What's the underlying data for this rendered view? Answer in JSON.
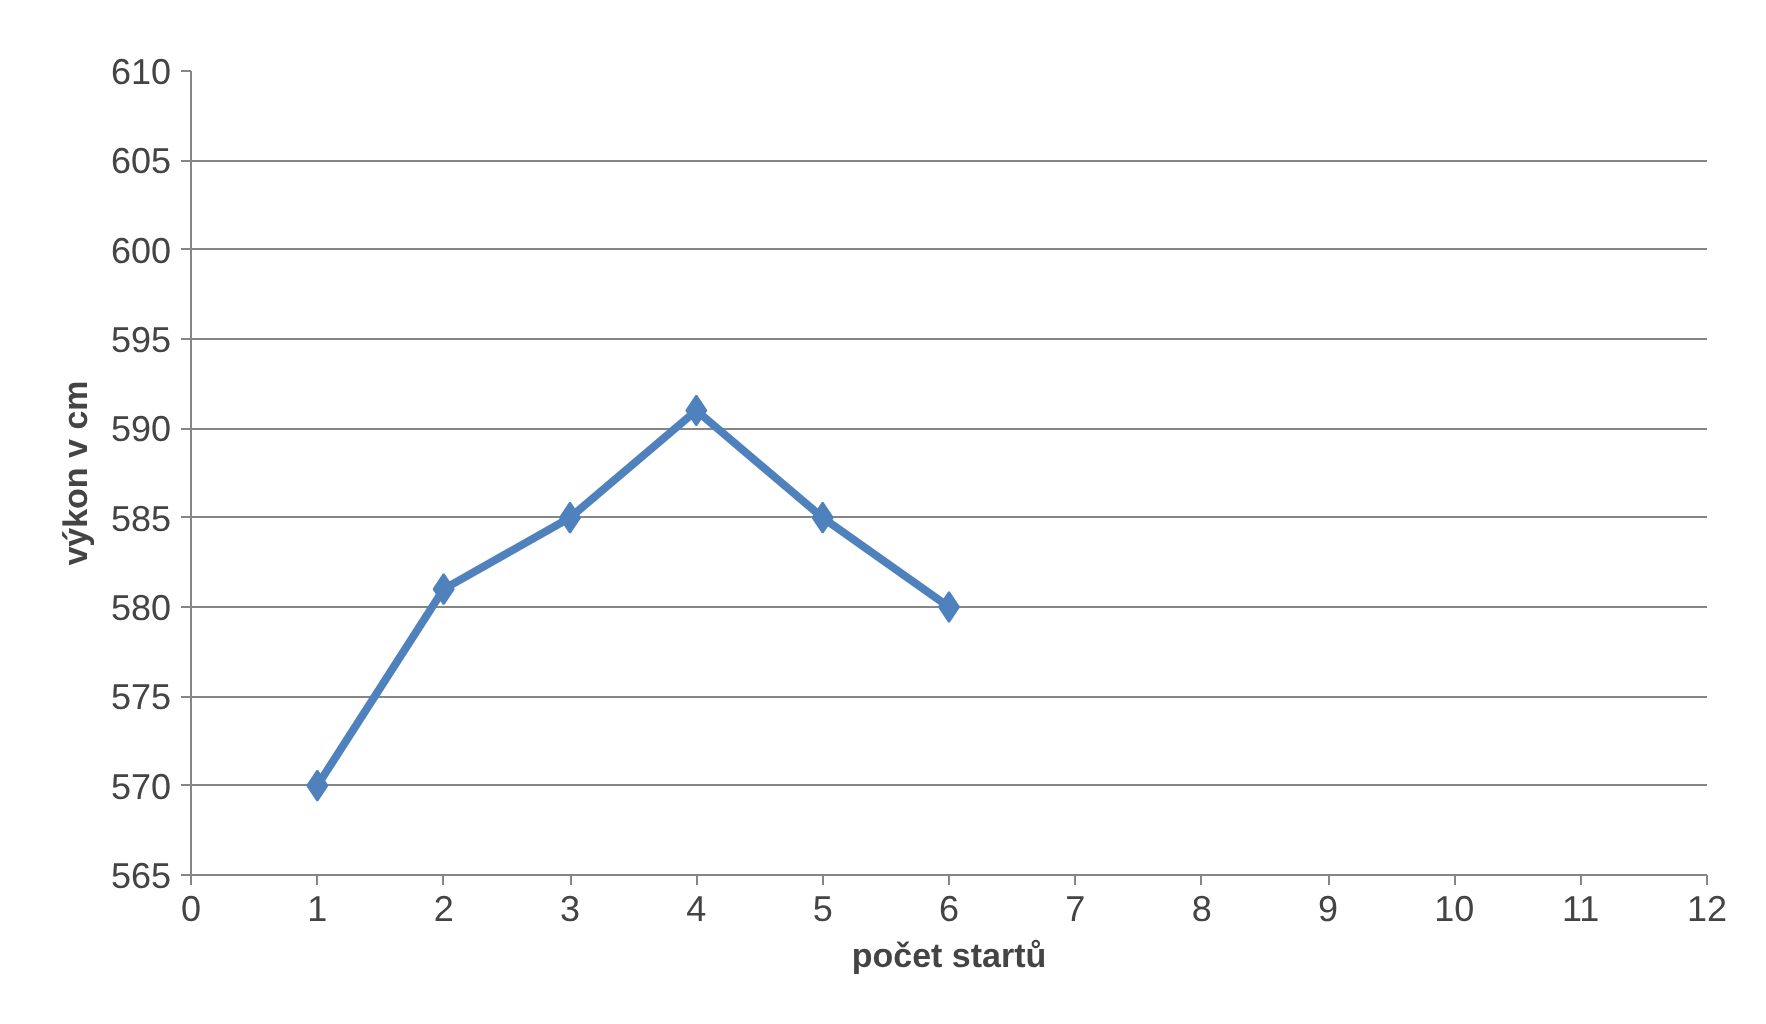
{
  "chart_data": {
    "type": "line",
    "xlabel": "počet startů",
    "ylabel": "výkon v cm",
    "x": [
      1,
      2,
      3,
      4,
      5,
      6
    ],
    "series": [
      {
        "color": "#4f81bd",
        "values": [
          570,
          581,
          585,
          591,
          585,
          580
        ]
      }
    ],
    "xlim": [
      0,
      12
    ],
    "xticks": [
      0,
      1,
      2,
      3,
      4,
      5,
      6,
      7,
      8,
      9,
      10,
      11,
      12
    ],
    "ylim": [
      565,
      610
    ],
    "yticks": [
      565,
      570,
      575,
      580,
      585,
      590,
      595,
      600,
      605,
      610
    ],
    "grid": "y",
    "marker": "diamond",
    "line_style": "solid"
  }
}
